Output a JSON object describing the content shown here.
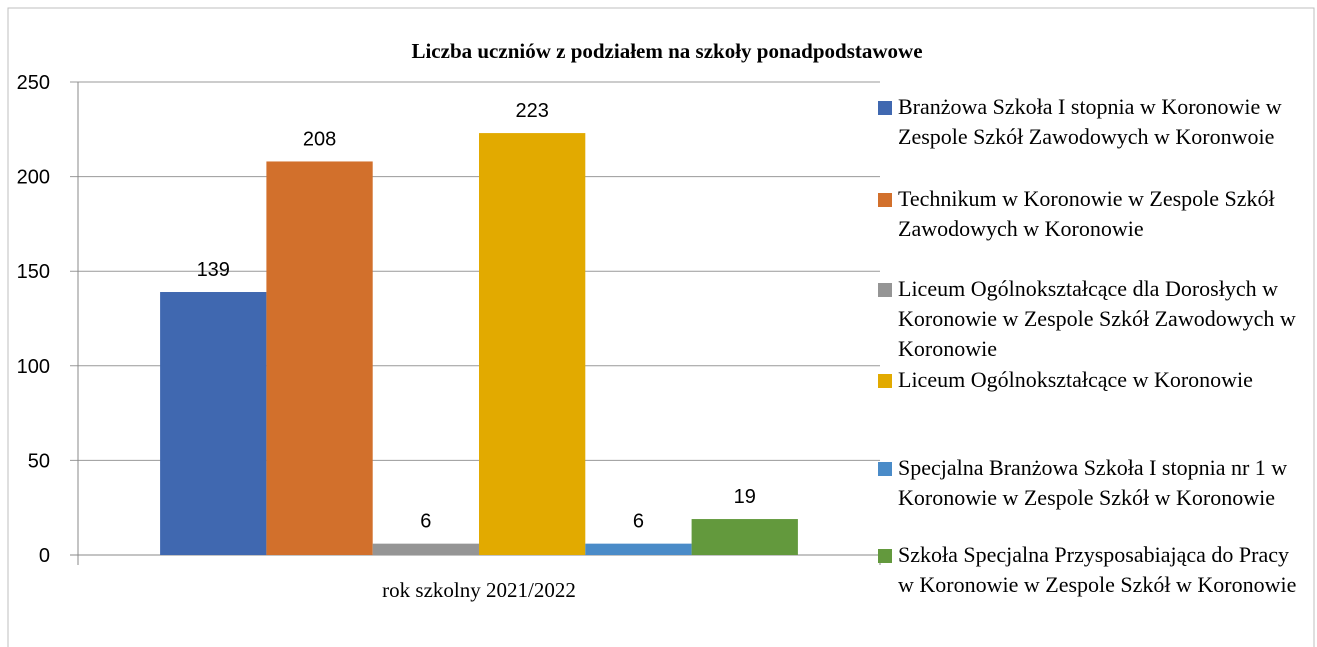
{
  "chart_data": {
    "type": "bar",
    "title": "Liczba uczniów z podziałem na szkoły ponadpodstawowe",
    "categories": [
      "rok szkolny 2021/2022"
    ],
    "series": [
      {
        "name": "Branżowa Szkoła I stopnia w Koronowie w Zespole Szkół Zawodowych w Koronwoie",
        "color": "#4068b0",
        "values": [
          139
        ]
      },
      {
        "name": "Technikum w Koronowie w Zespole Szkół Zawodowych w Koronowie",
        "color": "#d2702c",
        "values": [
          208
        ]
      },
      {
        "name": "Liceum Ogólnokształcące dla Dorosłych w Koronowie w Zespole Szkół Zawodowych w Koronowie",
        "color": "#959595",
        "values": [
          6
        ]
      },
      {
        "name": "Liceum Ogólnokształcące w Koronowie",
        "color": "#e2aa00",
        "values": [
          223
        ]
      },
      {
        "name": "Specjalna Branżowa Szkoła I stopnia nr 1 w Koronowie w Zespole Szkół w Koronowie",
        "color": "#4a8bc8",
        "values": [
          6
        ]
      },
      {
        "name": "Szkoła Specjalna Przysposabiająca do Pracy w Koronowie w Zespole Szkół w Koronowie",
        "color": "#63993d",
        "values": [
          19
        ]
      }
    ],
    "ylim": [
      0,
      250
    ],
    "yticks": [
      0,
      50,
      100,
      150,
      200,
      250
    ],
    "grid": true,
    "legend": "right"
  }
}
